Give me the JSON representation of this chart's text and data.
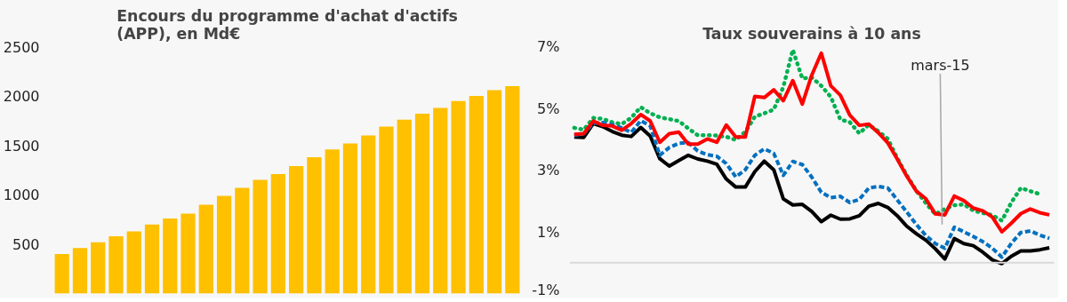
{
  "chart_data": [
    {
      "type": "bar",
      "title": "Encours du programme d'achat d'actifs\n(APP), en Md€",
      "categories": [
        null,
        null,
        null,
        null,
        null,
        null,
        null,
        null,
        null,
        null,
        null,
        null,
        null,
        null,
        null,
        null,
        null,
        null,
        null,
        null,
        null,
        null,
        null,
        null,
        null,
        null
      ],
      "values": [
        400,
        460,
        520,
        580,
        630,
        700,
        760,
        810,
        900,
        990,
        1070,
        1150,
        1210,
        1290,
        1380,
        1460,
        1520,
        1600,
        1690,
        1760,
        1820,
        1880,
        1950,
        2000,
        2060,
        2100
      ],
      "color": "#ffc000",
      "ylim": [
        0,
        2500
      ],
      "yticks": [
        500,
        1000,
        1500,
        2000,
        2500
      ],
      "tick_labels": "y",
      "grid": false
    },
    {
      "type": "line",
      "title": "Taux souverains à 10 ans",
      "tick_labels": "y",
      "grid": false,
      "ylim": [
        -1,
        7
      ],
      "categories": [
        null,
        null,
        null,
        null,
        null,
        null,
        null,
        null,
        null,
        null,
        null,
        null,
        null,
        null,
        null,
        null,
        null,
        null,
        null,
        null,
        null,
        null,
        null,
        null,
        null,
        null,
        null,
        null,
        null,
        null,
        null,
        null,
        null,
        null,
        null,
        null,
        null,
        null,
        null,
        null,
        null,
        null,
        null,
        null,
        null,
        null,
        null,
        null,
        null,
        null,
        null
      ],
      "yticks": [
        {
          "value": -1,
          "label": "-1%"
        },
        {
          "value": 1,
          "label": "1%"
        },
        {
          "value": 3,
          "label": "3%"
        },
        {
          "value": 5,
          "label": "5%"
        },
        {
          "value": 7,
          "label": "7%"
        }
      ],
      "ref_lines": [
        {
          "axis": "y",
          "value": 0,
          "color": "#d9d9d9"
        }
      ],
      "annotations": [
        "mars-15"
      ],
      "series": [
        {
          "color": "#00b050",
          "line_style": "dotted",
          "values": [
            4.37,
            4.31,
            4.69,
            4.66,
            4.55,
            4.49,
            4.7,
            5.04,
            4.84,
            4.71,
            4.65,
            4.59,
            4.35,
            4.13,
            4.13,
            4.12,
            4.08,
            3.98,
            4.24,
            4.73,
            4.84,
            4.96,
            5.69,
            6.9,
            5.97,
            6.0,
            5.73,
            5.37,
            4.64,
            4.55,
            4.19,
            4.47,
            4.26,
            4.01,
            3.38,
            2.83,
            2.33,
            1.93,
            1.57,
            1.74,
            1.86,
            1.89,
            1.69,
            1.61,
            1.54,
            1.36,
            1.95,
            2.42,
            2.32,
            2.22,
            null
          ]
        },
        {
          "color": "#000000",
          "line_style": "solid",
          "values": [
            4.07,
            4.06,
            4.51,
            4.41,
            4.25,
            4.13,
            4.09,
            4.38,
            4.1,
            3.37,
            3.13,
            3.31,
            3.48,
            3.36,
            3.29,
            3.19,
            2.71,
            2.45,
            2.45,
            2.95,
            3.29,
            3.01,
            2.07,
            1.87,
            1.89,
            1.66,
            1.33,
            1.54,
            1.41,
            1.42,
            1.52,
            1.83,
            1.92,
            1.79,
            1.52,
            1.18,
            0.94,
            0.73,
            0.45,
            0.12,
            0.78,
            0.62,
            0.55,
            0.34,
            0.09,
            -0.03,
            0.21,
            0.38,
            0.38,
            0.42,
            0.48
          ]
        },
        {
          "color": "#0070c0",
          "line_style": "dashed",
          "values": [
            4.13,
            4.18,
            4.52,
            4.54,
            4.47,
            4.37,
            4.22,
            4.6,
            4.43,
            3.48,
            3.73,
            3.87,
            3.89,
            3.62,
            3.5,
            3.45,
            3.21,
            2.78,
            3.01,
            3.48,
            3.69,
            3.54,
            2.83,
            3.28,
            3.18,
            2.77,
            2.28,
            2.11,
            2.15,
            1.95,
            2.05,
            2.42,
            2.47,
            2.42,
            2.03,
            1.64,
            1.24,
            0.88,
            0.62,
            0.47,
            1.15,
            1.0,
            0.85,
            0.68,
            0.47,
            0.18,
            0.63,
            0.98,
            1.03,
            0.89,
            0.79
          ]
        },
        {
          "color": "#ff0000",
          "line_style": "solid",
          "values": [
            4.16,
            4.18,
            4.59,
            4.45,
            4.43,
            4.29,
            4.51,
            4.8,
            4.59,
            3.9,
            4.18,
            4.23,
            3.84,
            3.84,
            4.01,
            3.9,
            4.46,
            4.07,
            4.07,
            5.39,
            5.35,
            5.6,
            5.25,
            5.9,
            5.14,
            6.08,
            6.79,
            5.73,
            5.43,
            4.78,
            4.45,
            4.49,
            4.21,
            3.88,
            3.35,
            2.8,
            2.32,
            2.07,
            1.58,
            1.55,
            2.16,
            2.01,
            1.77,
            1.68,
            1.48,
            1.0,
            1.28,
            1.59,
            1.74,
            1.62,
            1.55
          ]
        }
      ]
    }
  ]
}
